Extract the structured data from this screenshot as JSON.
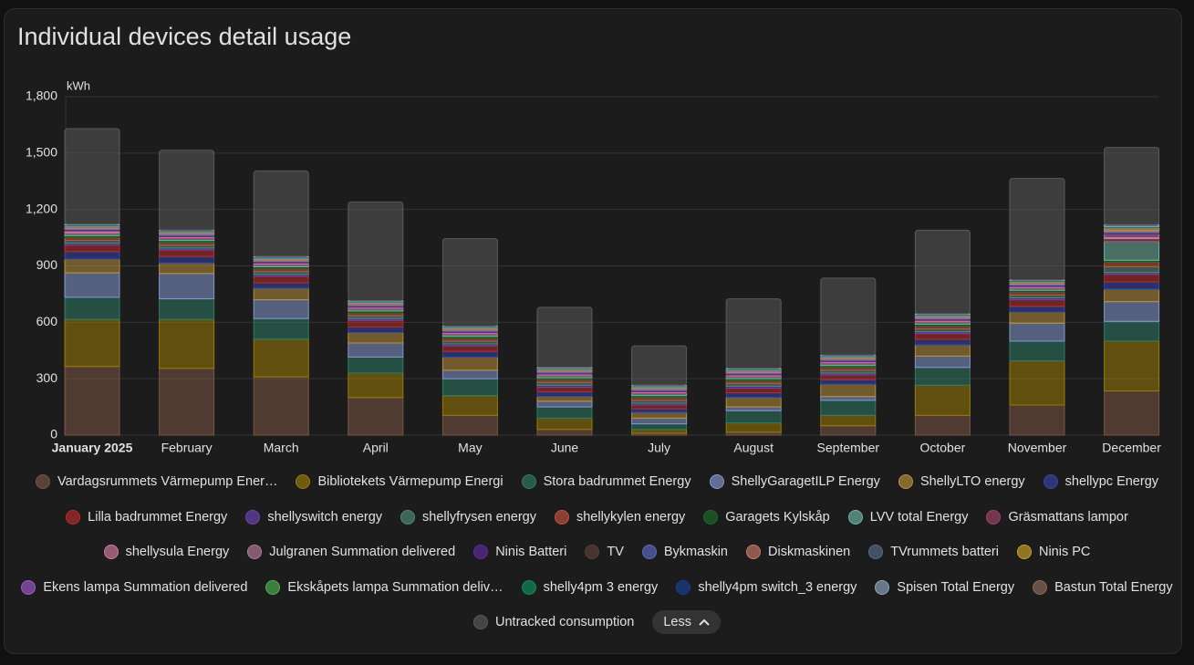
{
  "chart_data": {
    "type": "bar",
    "stacked": true,
    "title": "Individual devices detail usage",
    "unit_label": "kWh",
    "categories": [
      "January 2025",
      "February",
      "March",
      "April",
      "May",
      "June",
      "July",
      "August",
      "September",
      "October",
      "November",
      "December"
    ],
    "ylim": [
      0,
      1800
    ],
    "yticks": [
      0,
      300,
      600,
      900,
      {
        "value": 1200,
        "label": "1,200"
      },
      {
        "value": 1500,
        "label": "1,500"
      },
      {
        "value": 1800,
        "label": "1,800"
      }
    ],
    "grid": true,
    "legend_toggle": "Less",
    "series": [
      {
        "name": "Vardagsrummets Värmepump Ener…",
        "color": "#7a5546",
        "values": [
          365,
          355,
          310,
          200,
          105,
          30,
          10,
          15,
          50,
          105,
          160,
          235
        ]
      },
      {
        "name": "Bibliotekets Värmepump Energi",
        "color": "#9a7a08",
        "values": [
          250,
          260,
          200,
          130,
          105,
          60,
          20,
          50,
          55,
          160,
          235,
          265
        ]
      },
      {
        "name": "Stora badrummet Energy",
        "color": "#2f7a66",
        "values": [
          118,
          110,
          110,
          85,
          90,
          60,
          30,
          65,
          80,
          95,
          105,
          105
        ]
      },
      {
        "name": "ShellyGaragetILP Energy",
        "color": "#8597cf",
        "values": [
          130,
          135,
          100,
          75,
          45,
          30,
          30,
          20,
          20,
          60,
          95,
          105
        ]
      },
      {
        "name": "ShellyLTO energy",
        "color": "#b8903c",
        "values": [
          73,
          55,
          60,
          55,
          70,
          25,
          30,
          50,
          65,
          60,
          60,
          65
        ]
      },
      {
        "name": "shellypc Energy",
        "color": "#3346a8",
        "values": [
          40,
          35,
          30,
          30,
          30,
          25,
          20,
          25,
          25,
          30,
          30,
          40
        ]
      },
      {
        "name": "Lilla badrummet Energy",
        "color": "#b72c2c",
        "values": [
          35,
          35,
          35,
          35,
          30,
          25,
          20,
          25,
          25,
          30,
          35,
          40
        ]
      },
      {
        "name": "shellyswitch energy",
        "color": "#6b45b3",
        "values": [
          10,
          10,
          10,
          10,
          10,
          10,
          10,
          10,
          10,
          10,
          10,
          10
        ]
      },
      {
        "name": "shellyfrysen energy",
        "color": "#4e8c78",
        "values": [
          15,
          15,
          15,
          15,
          15,
          15,
          15,
          15,
          15,
          15,
          15,
          30
        ]
      },
      {
        "name": "shellykylen energy",
        "color": "#c0533f",
        "values": [
          15,
          15,
          15,
          15,
          15,
          15,
          15,
          15,
          15,
          15,
          15,
          25
        ]
      },
      {
        "name": "Garagets Kylskåp",
        "color": "#1b6b2a",
        "values": [
          10,
          10,
          10,
          10,
          10,
          10,
          10,
          10,
          10,
          10,
          10,
          10
        ]
      },
      {
        "name": "LVV total Energy",
        "color": "#6fb5a0",
        "values": [
          10,
          10,
          10,
          10,
          10,
          10,
          10,
          10,
          10,
          10,
          10,
          100
        ]
      },
      {
        "name": "Gräsmattans lampor",
        "color": "#a04468",
        "values": [
          5,
          5,
          5,
          5,
          5,
          5,
          5,
          5,
          5,
          5,
          5,
          15
        ]
      },
      {
        "name": "shellysula Energy",
        "color": "#d47aa0",
        "values": [
          5,
          5,
          5,
          5,
          5,
          5,
          5,
          5,
          5,
          5,
          5,
          5
        ]
      },
      {
        "name": "Julgranen Summation delivered",
        "color": "#b67b9c",
        "values": [
          5,
          0,
          0,
          0,
          0,
          0,
          0,
          0,
          0,
          0,
          0,
          20
        ]
      },
      {
        "name": "Ninis Batteri",
        "color": "#5b2c9e",
        "values": [
          5,
          5,
          5,
          5,
          5,
          5,
          5,
          5,
          5,
          5,
          5,
          5
        ]
      },
      {
        "name": "TV",
        "color": "#5d4037",
        "values": [
          3,
          3,
          3,
          3,
          3,
          3,
          3,
          3,
          3,
          3,
          3,
          3
        ]
      },
      {
        "name": "Bykmaskin",
        "color": "#5c6bc0",
        "values": [
          5,
          5,
          5,
          5,
          5,
          5,
          5,
          5,
          5,
          5,
          5,
          5
        ]
      },
      {
        "name": "Diskmaskinen",
        "color": "#c77a6a",
        "values": [
          5,
          5,
          5,
          5,
          5,
          5,
          5,
          5,
          5,
          5,
          5,
          5
        ]
      },
      {
        "name": "TVrummets batteri",
        "color": "#56698a",
        "values": [
          3,
          3,
          3,
          3,
          3,
          3,
          3,
          3,
          3,
          3,
          3,
          3
        ]
      },
      {
        "name": "Ninis PC",
        "color": "#c9a227",
        "values": [
          3,
          3,
          3,
          3,
          3,
          3,
          3,
          3,
          3,
          3,
          3,
          10
        ]
      },
      {
        "name": "Ekens lampa Summation delivered",
        "color": "#9c5bc9",
        "values": [
          2,
          2,
          2,
          2,
          2,
          2,
          2,
          2,
          2,
          2,
          2,
          2
        ]
      },
      {
        "name": "Ekskåpets lampa Summation deliv…",
        "color": "#4caf50",
        "values": [
          2,
          2,
          2,
          2,
          2,
          2,
          2,
          2,
          2,
          2,
          2,
          2
        ]
      },
      {
        "name": "shelly4pm 3 energy",
        "color": "#0f8f5a",
        "values": [
          2,
          2,
          2,
          2,
          2,
          2,
          2,
          2,
          2,
          2,
          2,
          2
        ]
      },
      {
        "name": "shelly4pm switch_3 energy",
        "color": "#1a3f8f",
        "values": [
          2,
          2,
          2,
          2,
          2,
          2,
          2,
          2,
          2,
          2,
          2,
          2
        ]
      },
      {
        "name": "Spisen Total Energy",
        "color": "#8fa4bf",
        "values": [
          3,
          3,
          3,
          3,
          3,
          3,
          3,
          3,
          3,
          3,
          3,
          10
        ]
      },
      {
        "name": "Bastun Total Energy",
        "color": "#8a6a5a",
        "values": [
          0,
          0,
          0,
          0,
          0,
          0,
          0,
          0,
          0,
          0,
          0,
          0
        ]
      },
      {
        "name": "Untracked consumption",
        "color": "#5a5a5a",
        "values": [
          509,
          425,
          455,
          525,
          465,
          320,
          210,
          370,
          410,
          445,
          540,
          411
        ]
      }
    ]
  }
}
